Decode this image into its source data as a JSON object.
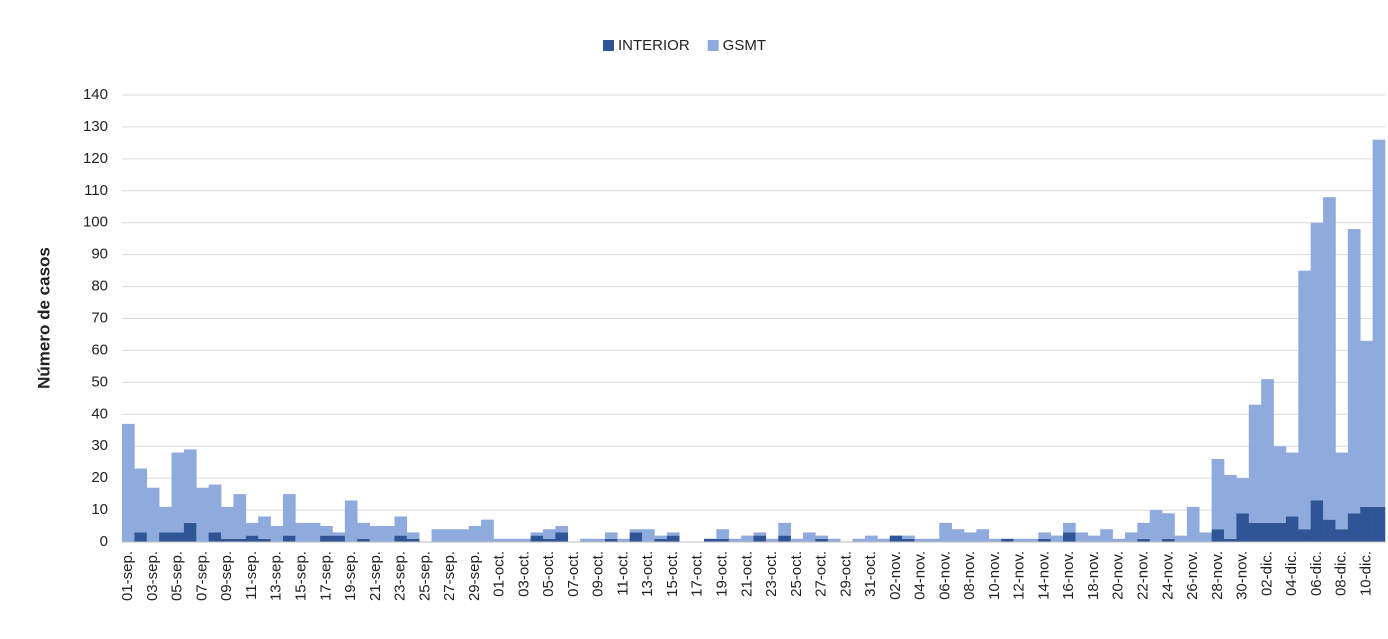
{
  "chart_data": {
    "type": "stacked_bar",
    "y_axis_label": "Número de casos",
    "categories": [
      "01-sep.",
      null,
      "03-sep.",
      null,
      "05-sep.",
      null,
      "07-sep.",
      null,
      "09-sep.",
      null,
      "11-sep.",
      null,
      "13-sep.",
      null,
      "15-sep.",
      null,
      "17-sep.",
      null,
      "19-sep.",
      null,
      "21-sep.",
      null,
      "23-sep.",
      null,
      "25-sep.",
      null,
      "27-sep.",
      null,
      "29-sep.",
      null,
      "01-oct.",
      null,
      "03-oct.",
      null,
      "05-oct.",
      null,
      "07-oct.",
      null,
      "09-oct.",
      null,
      "11-oct.",
      null,
      "13-oct.",
      null,
      "15-oct.",
      null,
      "17-oct.",
      null,
      "19-oct.",
      null,
      "21-oct.",
      null,
      "23-oct.",
      null,
      "25-oct.",
      null,
      "27-oct.",
      null,
      "29-oct.",
      null,
      "31-oct.",
      null,
      "02-nov.",
      null,
      "04-nov.",
      null,
      "06-nov.",
      null,
      "08-nov.",
      null,
      "10-nov.",
      null,
      "12-nov.",
      null,
      "14-nov.",
      null,
      "16-nov.",
      null,
      "18-nov.",
      null,
      "20-nov.",
      null,
      "22-nov.",
      null,
      "24-nov.",
      null,
      "26-nov.",
      null,
      "28-nov.",
      null,
      "30-nov.",
      null,
      "02-dic.",
      null,
      "04-dic.",
      null,
      "06-dic.",
      null,
      "08-dic.",
      null,
      "10-dic.",
      null
    ],
    "series": [
      {
        "name": "INTERIOR",
        "color": "#2f5597",
        "values": [
          0,
          3,
          0,
          3,
          3,
          6,
          0,
          3,
          1,
          1,
          2,
          1,
          0,
          2,
          0,
          0,
          2,
          2,
          0,
          1,
          0,
          0,
          2,
          1,
          0,
          0,
          0,
          0,
          0,
          0,
          0,
          0,
          0,
          2,
          1,
          3,
          0,
          0,
          0,
          1,
          0,
          3,
          0,
          1,
          2,
          0,
          0,
          1,
          1,
          0,
          0,
          2,
          0,
          2,
          0,
          0,
          1,
          0,
          0,
          0,
          0,
          0,
          2,
          1,
          0,
          0,
          0,
          0,
          0,
          0,
          0,
          1,
          0,
          0,
          1,
          0,
          3,
          0,
          0,
          0,
          0,
          0,
          1,
          0,
          1,
          0,
          0,
          0,
          4,
          1,
          9,
          6,
          6,
          6,
          8,
          4,
          13,
          7,
          4,
          9,
          11,
          11
        ]
      },
      {
        "name": "GSMT",
        "color": "#8faadc",
        "values": [
          37,
          20,
          17,
          8,
          25,
          23,
          17,
          15,
          10,
          14,
          4,
          7,
          5,
          13,
          6,
          6,
          3,
          1,
          13,
          5,
          5,
          5,
          6,
          2,
          0,
          4,
          4,
          4,
          5,
          7,
          1,
          1,
          1,
          1,
          3,
          2,
          0,
          1,
          1,
          2,
          1,
          1,
          4,
          1,
          1,
          0,
          0,
          0,
          3,
          1,
          2,
          1,
          1,
          4,
          1,
          3,
          1,
          1,
          0,
          1,
          2,
          1,
          0,
          1,
          1,
          1,
          6,
          4,
          3,
          4,
          1,
          0,
          1,
          1,
          2,
          2,
          3,
          3,
          2,
          4,
          1,
          3,
          5,
          10,
          8,
          2,
          11,
          3,
          22,
          20,
          11,
          37,
          45,
          24,
          20,
          81,
          87,
          101,
          24,
          89,
          52,
          115
        ]
      }
    ],
    "ylim": [
      0,
      140
    ],
    "yticks": [
      0,
      10,
      20,
      30,
      40,
      50,
      60,
      70,
      80,
      90,
      100,
      110,
      120,
      130,
      140
    ],
    "grid": true,
    "legend": "top"
  }
}
